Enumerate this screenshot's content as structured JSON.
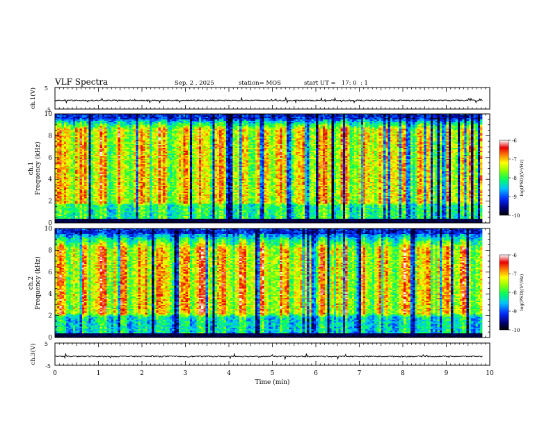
{
  "header": {
    "title": "VLF Spectra",
    "date": "Sep. 2 , 2025",
    "station": "station= MOS",
    "start_ut": "start UT =   17: 0  : 1"
  },
  "chart_data": [
    {
      "type": "line",
      "panel": "ch1-waveform",
      "ylabel": "ch.1(V)",
      "y_ticks": [
        "5",
        "-5"
      ],
      "ylim": [
        -5,
        5
      ],
      "x_range": [
        0,
        10
      ],
      "data_extent_min": 9.83,
      "baseline_value": -1
    },
    {
      "type": "heatmap",
      "panel": "ch1-spectrogram",
      "ylabel": "ch.1\nFrequency (kHz)",
      "y_ticks": [
        "0",
        "2",
        "4",
        "6",
        "8",
        "10"
      ],
      "ylim": [
        0,
        10
      ],
      "x_range": [
        0,
        10
      ],
      "data_extent_min": 9.83,
      "colorbar": {
        "label": "log(PSD)(V²/Hz)",
        "ticks": [
          "-6",
          "-7",
          "-8",
          "-9",
          "-10"
        ],
        "range": [
          -10,
          -6
        ],
        "colormap": "rainbow (black-blue-green-yellow-red-white)"
      },
      "dominant_band_khz": [
        1.5,
        9
      ],
      "note_levels": {
        "band": -7,
        "low_band": -8.5,
        "edges": -9.5
      }
    },
    {
      "type": "heatmap",
      "panel": "ch2-spectrogram",
      "ylabel": "ch.2\nFrequency (kHz)",
      "y_ticks": [
        "0",
        "2",
        "4",
        "6",
        "8",
        "10"
      ],
      "ylim": [
        0,
        10
      ],
      "x_range": [
        0,
        10
      ],
      "data_extent_min": 9.83,
      "colorbar": {
        "label": "log(PSD)(V²/Hz)",
        "ticks": [
          "-6",
          "-7",
          "-8",
          "-9",
          "-10"
        ],
        "range": [
          -10,
          -6
        ],
        "colormap": "rainbow (black-blue-green-yellow-red-white)"
      },
      "dominant_band_khz": [
        2,
        8.5
      ]
    },
    {
      "type": "line",
      "panel": "ch2-waveform",
      "ylabel": "ch.3(V)",
      "y_ticks": [
        "5",
        "-5"
      ],
      "ylim": [
        -5,
        5
      ],
      "x_range": [
        0,
        10
      ],
      "data_extent_min": 9.83,
      "baseline_value": -1
    }
  ],
  "x_axis": {
    "label": "Time  (min)",
    "ticks": [
      "0",
      "1",
      "2",
      "3",
      "4",
      "5",
      "6",
      "7",
      "8",
      "9",
      "10"
    ]
  },
  "colors": {
    "frame": "#000000",
    "background": "#ffffff"
  }
}
